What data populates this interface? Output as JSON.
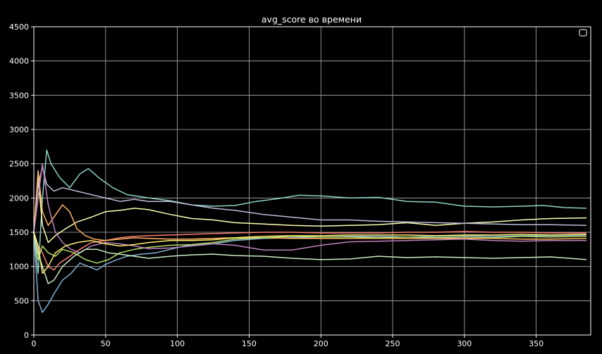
{
  "chart_data": {
    "type": "line",
    "title": "avg_score во времени",
    "xlabel": "",
    "ylabel": "",
    "xlim": [
      0,
      388
    ],
    "ylim": [
      0,
      4500
    ],
    "xticks": [
      0,
      50,
      100,
      150,
      200,
      250,
      300,
      350
    ],
    "yticks": [
      0,
      500,
      1000,
      1500,
      2000,
      2500,
      3000,
      3500,
      4000,
      4500
    ],
    "grid": true,
    "legend": "top-right (empty)",
    "background": "#000000",
    "series": [
      {
        "color": "#8dd3c7",
        "points": [
          [
            0,
            1500
          ],
          [
            3,
            900
          ],
          [
            6,
            2000
          ],
          [
            9,
            2700
          ],
          [
            12,
            2500
          ],
          [
            18,
            2300
          ],
          [
            25,
            2150
          ],
          [
            32,
            2350
          ],
          [
            38,
            2430
          ],
          [
            45,
            2300
          ],
          [
            55,
            2150
          ],
          [
            65,
            2050
          ],
          [
            80,
            2000
          ],
          [
            95,
            1960
          ],
          [
            110,
            1900
          ],
          [
            125,
            1880
          ],
          [
            140,
            1890
          ],
          [
            155,
            1950
          ],
          [
            170,
            1990
          ],
          [
            185,
            2040
          ],
          [
            200,
            2030
          ],
          [
            220,
            2000
          ],
          [
            240,
            2010
          ],
          [
            260,
            1950
          ],
          [
            280,
            1940
          ],
          [
            300,
            1880
          ],
          [
            320,
            1870
          ],
          [
            340,
            1880
          ],
          [
            355,
            1890
          ],
          [
            370,
            1860
          ],
          [
            385,
            1850
          ]
        ]
      },
      {
        "color": "#feffb3",
        "points": [
          [
            0,
            1500
          ],
          [
            3,
            2300
          ],
          [
            6,
            1600
          ],
          [
            10,
            1350
          ],
          [
            15,
            1450
          ],
          [
            22,
            1550
          ],
          [
            30,
            1650
          ],
          [
            40,
            1720
          ],
          [
            50,
            1800
          ],
          [
            60,
            1820
          ],
          [
            70,
            1850
          ],
          [
            80,
            1830
          ],
          [
            95,
            1760
          ],
          [
            110,
            1700
          ],
          [
            125,
            1680
          ],
          [
            140,
            1640
          ],
          [
            160,
            1620
          ],
          [
            180,
            1600
          ],
          [
            200,
            1590
          ],
          [
            220,
            1600
          ],
          [
            240,
            1610
          ],
          [
            260,
            1640
          ],
          [
            280,
            1600
          ],
          [
            300,
            1630
          ],
          [
            320,
            1650
          ],
          [
            340,
            1680
          ],
          [
            360,
            1700
          ],
          [
            385,
            1710
          ]
        ]
      },
      {
        "color": "#bfbbd9",
        "points": [
          [
            0,
            1500
          ],
          [
            3,
            2200
          ],
          [
            6,
            2450
          ],
          [
            9,
            2200
          ],
          [
            14,
            2100
          ],
          [
            20,
            2150
          ],
          [
            30,
            2100
          ],
          [
            40,
            2050
          ],
          [
            50,
            2000
          ],
          [
            60,
            1950
          ],
          [
            70,
            1980
          ],
          [
            80,
            1950
          ],
          [
            95,
            1950
          ],
          [
            110,
            1900
          ],
          [
            125,
            1850
          ],
          [
            140,
            1820
          ],
          [
            160,
            1760
          ],
          [
            180,
            1720
          ],
          [
            200,
            1680
          ],
          [
            220,
            1680
          ],
          [
            240,
            1660
          ],
          [
            260,
            1650
          ],
          [
            280,
            1640
          ],
          [
            300,
            1630
          ],
          [
            320,
            1620
          ],
          [
            340,
            1610
          ],
          [
            360,
            1610
          ],
          [
            385,
            1600
          ]
        ]
      },
      {
        "color": "#fa8174",
        "points": [
          [
            0,
            1500
          ],
          [
            3,
            1300
          ],
          [
            6,
            1200
          ],
          [
            10,
            1000
          ],
          [
            14,
            950
          ],
          [
            18,
            1050
          ],
          [
            25,
            1150
          ],
          [
            32,
            1250
          ],
          [
            40,
            1350
          ],
          [
            50,
            1380
          ],
          [
            60,
            1420
          ],
          [
            70,
            1440
          ],
          [
            80,
            1450
          ],
          [
            95,
            1460
          ],
          [
            110,
            1470
          ],
          [
            125,
            1480
          ],
          [
            140,
            1490
          ],
          [
            160,
            1500
          ],
          [
            180,
            1500
          ],
          [
            200,
            1490
          ],
          [
            220,
            1490
          ],
          [
            240,
            1490
          ],
          [
            260,
            1500
          ],
          [
            280,
            1500
          ],
          [
            300,
            1510
          ],
          [
            320,
            1500
          ],
          [
            340,
            1500
          ],
          [
            360,
            1490
          ],
          [
            385,
            1490
          ]
        ]
      },
      {
        "color": "#81b1d2",
        "points": [
          [
            0,
            1500
          ],
          [
            3,
            500
          ],
          [
            6,
            330
          ],
          [
            10,
            450
          ],
          [
            14,
            600
          ],
          [
            20,
            800
          ],
          [
            26,
            900
          ],
          [
            32,
            1050
          ],
          [
            38,
            1000
          ],
          [
            44,
            950
          ],
          [
            50,
            1030
          ],
          [
            58,
            1100
          ],
          [
            65,
            1150
          ],
          [
            75,
            1180
          ],
          [
            85,
            1200
          ],
          [
            95,
            1250
          ],
          [
            105,
            1300
          ],
          [
            115,
            1320
          ],
          [
            125,
            1330
          ],
          [
            140,
            1380
          ],
          [
            160,
            1410
          ],
          [
            180,
            1420
          ],
          [
            200,
            1430
          ],
          [
            220,
            1440
          ],
          [
            240,
            1440
          ],
          [
            260,
            1430
          ],
          [
            280,
            1440
          ],
          [
            300,
            1450
          ],
          [
            320,
            1440
          ],
          [
            340,
            1450
          ],
          [
            360,
            1450
          ],
          [
            385,
            1460
          ]
        ]
      },
      {
        "color": "#fdb462",
        "points": [
          [
            0,
            1500
          ],
          [
            3,
            2400
          ],
          [
            6,
            1800
          ],
          [
            10,
            1600
          ],
          [
            15,
            1750
          ],
          [
            20,
            1900
          ],
          [
            25,
            1800
          ],
          [
            30,
            1550
          ],
          [
            36,
            1450
          ],
          [
            42,
            1400
          ],
          [
            50,
            1380
          ],
          [
            60,
            1400
          ],
          [
            70,
            1420
          ],
          [
            80,
            1410
          ],
          [
            95,
            1400
          ],
          [
            110,
            1400
          ],
          [
            125,
            1410
          ],
          [
            140,
            1420
          ],
          [
            160,
            1420
          ],
          [
            180,
            1410
          ],
          [
            200,
            1410
          ],
          [
            220,
            1410
          ],
          [
            240,
            1410
          ],
          [
            260,
            1410
          ],
          [
            280,
            1410
          ],
          [
            300,
            1410
          ],
          [
            320,
            1410
          ],
          [
            340,
            1400
          ],
          [
            360,
            1400
          ],
          [
            385,
            1410
          ]
        ]
      },
      {
        "color": "#b3de69",
        "points": [
          [
            0,
            1500
          ],
          [
            3,
            1100
          ],
          [
            6,
            1300
          ],
          [
            10,
            1200
          ],
          [
            15,
            1150
          ],
          [
            20,
            1250
          ],
          [
            28,
            1200
          ],
          [
            36,
            1100
          ],
          [
            44,
            1050
          ],
          [
            52,
            1100
          ],
          [
            60,
            1200
          ],
          [
            70,
            1250
          ],
          [
            80,
            1280
          ],
          [
            95,
            1310
          ],
          [
            110,
            1320
          ],
          [
            125,
            1350
          ],
          [
            140,
            1400
          ],
          [
            160,
            1420
          ],
          [
            180,
            1440
          ],
          [
            200,
            1430
          ],
          [
            220,
            1430
          ],
          [
            240,
            1420
          ],
          [
            260,
            1430
          ],
          [
            280,
            1420
          ],
          [
            300,
            1430
          ],
          [
            320,
            1420
          ],
          [
            340,
            1440
          ],
          [
            360,
            1430
          ],
          [
            385,
            1440
          ]
        ]
      },
      {
        "color": "#bc82bd",
        "points": [
          [
            0,
            1500
          ],
          [
            3,
            2000
          ],
          [
            6,
            2500
          ],
          [
            10,
            1900
          ],
          [
            15,
            1500
          ],
          [
            20,
            1350
          ],
          [
            26,
            1250
          ],
          [
            32,
            1200
          ],
          [
            40,
            1300
          ],
          [
            50,
            1350
          ],
          [
            60,
            1330
          ],
          [
            70,
            1300
          ],
          [
            80,
            1260
          ],
          [
            95,
            1270
          ],
          [
            110,
            1300
          ],
          [
            125,
            1330
          ],
          [
            140,
            1310
          ],
          [
            160,
            1240
          ],
          [
            180,
            1240
          ],
          [
            200,
            1310
          ],
          [
            220,
            1360
          ],
          [
            240,
            1370
          ],
          [
            260,
            1380
          ],
          [
            280,
            1390
          ],
          [
            300,
            1400
          ],
          [
            320,
            1380
          ],
          [
            340,
            1370
          ],
          [
            360,
            1380
          ],
          [
            385,
            1380
          ]
        ]
      },
      {
        "color": "#ccebc4",
        "points": [
          [
            0,
            1500
          ],
          [
            3,
            1200
          ],
          [
            6,
            1000
          ],
          [
            10,
            750
          ],
          [
            14,
            800
          ],
          [
            20,
            1000
          ],
          [
            28,
            1150
          ],
          [
            36,
            1250
          ],
          [
            44,
            1250
          ],
          [
            52,
            1200
          ],
          [
            60,
            1180
          ],
          [
            70,
            1150
          ],
          [
            80,
            1120
          ],
          [
            95,
            1150
          ],
          [
            110,
            1170
          ],
          [
            125,
            1180
          ],
          [
            140,
            1160
          ],
          [
            160,
            1150
          ],
          [
            180,
            1120
          ],
          [
            200,
            1100
          ],
          [
            220,
            1110
          ],
          [
            240,
            1150
          ],
          [
            260,
            1130
          ],
          [
            280,
            1140
          ],
          [
            300,
            1130
          ],
          [
            320,
            1120
          ],
          [
            340,
            1130
          ],
          [
            360,
            1140
          ],
          [
            385,
            1100
          ]
        ]
      },
      {
        "color": "#ffed6f",
        "points": [
          [
            0,
            1500
          ],
          [
            3,
            1300
          ],
          [
            6,
            900
          ],
          [
            10,
            1000
          ],
          [
            15,
            1200
          ],
          [
            22,
            1300
          ],
          [
            30,
            1350
          ],
          [
            40,
            1380
          ],
          [
            50,
            1330
          ],
          [
            60,
            1300
          ],
          [
            70,
            1320
          ],
          [
            80,
            1350
          ],
          [
            95,
            1380
          ],
          [
            110,
            1380
          ],
          [
            125,
            1390
          ],
          [
            140,
            1420
          ],
          [
            160,
            1440
          ],
          [
            180,
            1450
          ],
          [
            200,
            1450
          ],
          [
            220,
            1460
          ],
          [
            240,
            1460
          ],
          [
            260,
            1460
          ],
          [
            280,
            1450
          ],
          [
            300,
            1460
          ],
          [
            320,
            1460
          ],
          [
            340,
            1470
          ],
          [
            360,
            1460
          ],
          [
            385,
            1470
          ]
        ]
      }
    ]
  }
}
